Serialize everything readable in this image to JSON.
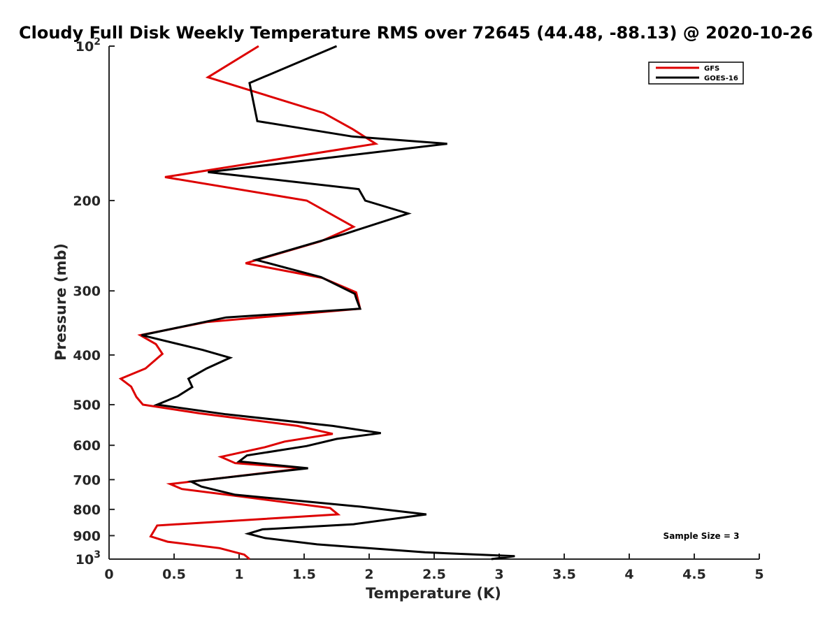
{
  "chart_data": {
    "type": "line",
    "title": "Cloudy Full Disk Weekly Temperature RMS over 72645 (44.48, -88.13) @ 2020-10-26",
    "xlabel": "Temperature (K)",
    "ylabel": "Pressure (mb)",
    "xlim": [
      0,
      5
    ],
    "ylim": [
      100,
      1000
    ],
    "y_scale": "log",
    "y_reversed": true,
    "x_ticks": [
      "0",
      "0.5",
      "1",
      "1.5",
      "2",
      "2.5",
      "3",
      "3.5",
      "4",
      "4.5",
      "5"
    ],
    "y_ticks": [
      {
        "value": 100,
        "base": "10",
        "exp": "2"
      },
      {
        "value": 200,
        "label": "200"
      },
      {
        "value": 300,
        "label": "300"
      },
      {
        "value": 400,
        "label": "400"
      },
      {
        "value": 500,
        "label": "500"
      },
      {
        "value": 600,
        "label": "600"
      },
      {
        "value": 700,
        "label": "700"
      },
      {
        "value": 800,
        "label": "800"
      },
      {
        "value": 900,
        "label": "900"
      },
      {
        "value": 1000,
        "base": "10",
        "exp": "3"
      }
    ],
    "legend_position": "top-right",
    "grid": false,
    "annotation": "Sample Size = 3",
    "series": [
      {
        "name": "GFS",
        "color": "#dd0000",
        "points": [
          [
            1.15,
            100
          ],
          [
            0.76,
            115
          ],
          [
            1.65,
            135
          ],
          [
            1.87,
            145
          ],
          [
            2.05,
            155
          ],
          [
            0.43,
            180
          ],
          [
            1.52,
            200
          ],
          [
            1.88,
            225
          ],
          [
            1.63,
            240
          ],
          [
            1.05,
            265
          ],
          [
            1.64,
            283
          ],
          [
            1.9,
            302
          ],
          [
            1.93,
            325
          ],
          [
            0.75,
            345
          ],
          [
            0.24,
            366
          ],
          [
            0.36,
            381
          ],
          [
            0.41,
            398
          ],
          [
            0.28,
            425
          ],
          [
            0.09,
            445
          ],
          [
            0.17,
            461
          ],
          [
            0.21,
            483
          ],
          [
            0.26,
            500
          ],
          [
            0.7,
            520
          ],
          [
            1.45,
            550
          ],
          [
            1.72,
            570
          ],
          [
            1.35,
            590
          ],
          [
            1.2,
            605
          ],
          [
            0.86,
            632
          ],
          [
            0.97,
            650
          ],
          [
            1.5,
            665
          ],
          [
            0.47,
            714
          ],
          [
            0.56,
            730
          ],
          [
            1.05,
            757
          ],
          [
            1.7,
            795
          ],
          [
            1.76,
            818
          ],
          [
            0.37,
            860
          ],
          [
            0.32,
            903
          ],
          [
            0.45,
            925
          ],
          [
            0.85,
            952
          ],
          [
            1.04,
            980
          ],
          [
            1.08,
            1000
          ]
        ]
      },
      {
        "name": "GOES-16",
        "color": "#000000",
        "points": [
          [
            1.75,
            100
          ],
          [
            1.08,
            118
          ],
          [
            1.14,
            140
          ],
          [
            1.87,
            150
          ],
          [
            2.6,
            155
          ],
          [
            0.76,
            176
          ],
          [
            1.92,
            190
          ],
          [
            1.97,
            200
          ],
          [
            2.3,
            212
          ],
          [
            1.82,
            232
          ],
          [
            1.13,
            261
          ],
          [
            1.63,
            282
          ],
          [
            1.89,
            304
          ],
          [
            1.9,
            310
          ],
          [
            1.93,
            325
          ],
          [
            0.9,
            338
          ],
          [
            0.25,
            366
          ],
          [
            0.72,
            391
          ],
          [
            0.93,
            405
          ],
          [
            0.75,
            425
          ],
          [
            0.61,
            445
          ],
          [
            0.64,
            462
          ],
          [
            0.53,
            481
          ],
          [
            0.37,
            500
          ],
          [
            0.9,
            522
          ],
          [
            1.72,
            550
          ],
          [
            2.09,
            568
          ],
          [
            1.75,
            583
          ],
          [
            1.52,
            602
          ],
          [
            1.06,
            628
          ],
          [
            1.0,
            645
          ],
          [
            1.53,
            665
          ],
          [
            0.63,
            706
          ],
          [
            0.71,
            722
          ],
          [
            0.97,
            749
          ],
          [
            1.93,
            790
          ],
          [
            2.44,
            818
          ],
          [
            1.88,
            855
          ],
          [
            1.18,
            875
          ],
          [
            1.07,
            892
          ],
          [
            1.2,
            910
          ],
          [
            1.6,
            936
          ],
          [
            2.43,
            970
          ],
          [
            3.12,
            987
          ],
          [
            2.94,
            1000
          ]
        ]
      }
    ]
  }
}
